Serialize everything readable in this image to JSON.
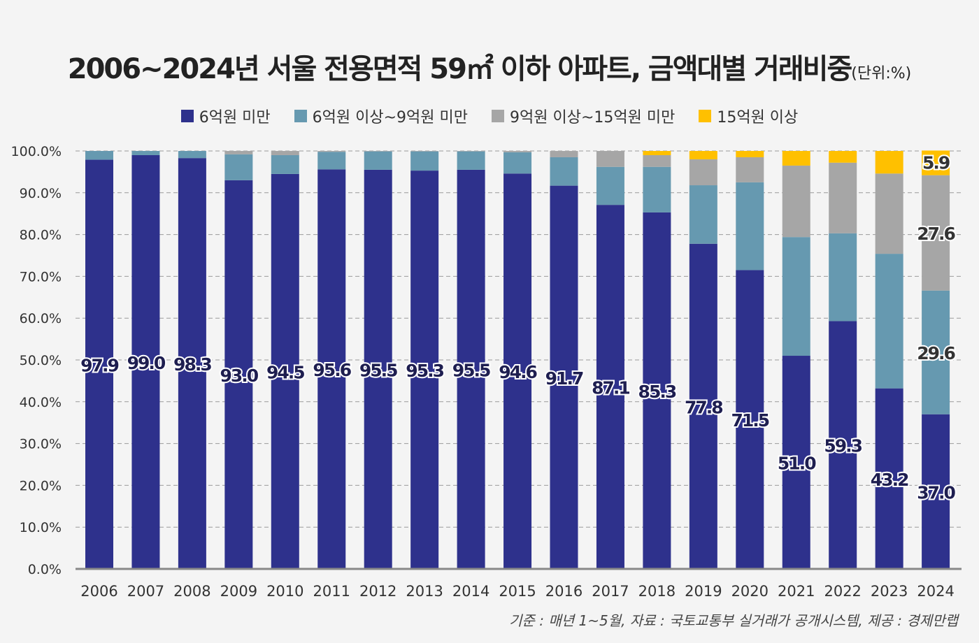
{
  "chart_data": {
    "type": "bar",
    "stacked": true,
    "title": "2006~2024년 서울 전용면적 59㎡ 이하 아파트, 금액대별 거래비중",
    "unit_note": "(단위:%)",
    "categories": [
      "2006",
      "2007",
      "2008",
      "2009",
      "2010",
      "2011",
      "2012",
      "2013",
      "2014",
      "2015",
      "2016",
      "2017",
      "2018",
      "2019",
      "2020",
      "2021",
      "2022",
      "2023",
      "2024"
    ],
    "series": [
      {
        "name": "6억원 미만",
        "color": "#2e318c",
        "values": [
          97.9,
          99.0,
          98.3,
          93.0,
          94.5,
          95.6,
          95.5,
          95.3,
          95.5,
          94.6,
          91.7,
          87.1,
          85.3,
          77.8,
          71.5,
          51.0,
          59.3,
          43.2,
          37.0
        ]
      },
      {
        "name": "6억원 이상~9억원 미만",
        "color": "#6699b0",
        "values": [
          2.1,
          1.0,
          1.7,
          6.2,
          4.5,
          4.2,
          4.4,
          4.6,
          4.4,
          5.1,
          6.8,
          9.1,
          10.9,
          14.0,
          21.0,
          28.4,
          21.0,
          32.2,
          29.6
        ]
      },
      {
        "name": "9억원 이상~15억원 미만",
        "color": "#a6a6a6",
        "values": [
          0,
          0,
          0,
          0.8,
          1.0,
          0.2,
          0.1,
          0.1,
          0.1,
          0.3,
          1.5,
          3.8,
          2.8,
          6.2,
          6.0,
          17.1,
          16.9,
          19.2,
          27.6
        ]
      },
      {
        "name": "15억원 이상",
        "color": "#ffc000",
        "values": [
          0,
          0,
          0,
          0,
          0,
          0,
          0,
          0,
          0,
          0,
          0,
          0,
          1.0,
          2.0,
          1.5,
          3.5,
          2.8,
          5.4,
          5.9
        ]
      }
    ],
    "data_labels": {
      "first_series_all_years": [
        "97.9",
        "99.0",
        "98.3",
        "93.0",
        "94.5",
        "95.6",
        "95.5",
        "95.3",
        "95.5",
        "94.6",
        "91.7",
        "87.1",
        "85.3",
        "77.8",
        "71.5",
        "51.0",
        "59.3",
        "43.2",
        "37.0"
      ],
      "last_year_other_series": [
        "29.6",
        "27.6",
        "5.9"
      ]
    },
    "yticks": [
      "0.0%",
      "10.0%",
      "20.0%",
      "30.0%",
      "40.0%",
      "50.0%",
      "60.0%",
      "70.0%",
      "80.0%",
      "90.0%",
      "100.0%"
    ],
    "ylim": [
      0,
      100
    ],
    "grid": true,
    "legend": "top",
    "source": "기준 : 매년 1~5월, 자료 : 국토교통부 실거래가 공개시스템, 제공 : 경제만랩"
  }
}
